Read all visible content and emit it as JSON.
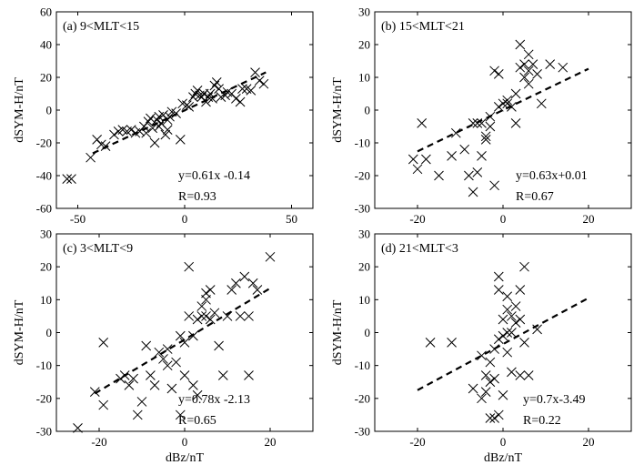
{
  "chart_data": [
    {
      "type": "scatter",
      "panel": "a",
      "title": "(a) 9<MLT<15",
      "ylabel": "dSYM-H/nT",
      "xlabel": "",
      "xlim": [
        -60,
        60
      ],
      "ylim": [
        -60,
        60
      ],
      "xticks": [
        -50,
        0,
        50
      ],
      "yticks": [
        -60,
        -40,
        -20,
        0,
        20,
        40,
        60
      ],
      "fit": {
        "slope": 0.61,
        "intercept": -0.14,
        "x_range": [
          -43,
          38
        ]
      },
      "annotation": {
        "eq": "y=0.61x -0.14",
        "r": "R=0.93"
      },
      "points": [
        [
          -55,
          -42
        ],
        [
          -53,
          -42
        ],
        [
          -44,
          -29
        ],
        [
          -41,
          -18
        ],
        [
          -39,
          -21
        ],
        [
          -37,
          -22
        ],
        [
          -33,
          -15
        ],
        [
          -31,
          -13
        ],
        [
          -29,
          -12
        ],
        [
          -27,
          -13
        ],
        [
          -25,
          -12
        ],
        [
          -23,
          -14
        ],
        [
          -21,
          -13
        ],
        [
          -19,
          -10
        ],
        [
          -18,
          -14
        ],
        [
          -17,
          -7
        ],
        [
          -16,
          -5
        ],
        [
          -15,
          -11
        ],
        [
          -14,
          -20
        ],
        [
          -13,
          -6
        ],
        [
          -12,
          -4
        ],
        [
          -12,
          -10
        ],
        [
          -11,
          -8
        ],
        [
          -10,
          -3
        ],
        [
          -9,
          -15
        ],
        [
          -8,
          -6
        ],
        [
          -8,
          -12
        ],
        [
          -7,
          -4
        ],
        [
          -6,
          -1
        ],
        [
          -4,
          -2
        ],
        [
          -2,
          -18
        ],
        [
          -1,
          4
        ],
        [
          1,
          3
        ],
        [
          2,
          2
        ],
        [
          4,
          8
        ],
        [
          5,
          10
        ],
        [
          6,
          12
        ],
        [
          7,
          9
        ],
        [
          8,
          8
        ],
        [
          9,
          10
        ],
        [
          10,
          5
        ],
        [
          11,
          8
        ],
        [
          12,
          10
        ],
        [
          13,
          7
        ],
        [
          14,
          15
        ],
        [
          15,
          17
        ],
        [
          16,
          13
        ],
        [
          17,
          8
        ],
        [
          19,
          9
        ],
        [
          20,
          11
        ],
        [
          22,
          10
        ],
        [
          24,
          7
        ],
        [
          26,
          5
        ],
        [
          27,
          13
        ],
        [
          29,
          13
        ],
        [
          31,
          12
        ],
        [
          33,
          23
        ],
        [
          35,
          18
        ],
        [
          37,
          16
        ]
      ]
    },
    {
      "type": "scatter",
      "panel": "b",
      "title": "(b) 15<MLT<21",
      "ylabel": "dSYM-H/nT",
      "xlabel": "",
      "xlim": [
        -30,
        30
      ],
      "ylim": [
        -30,
        30
      ],
      "xticks": [
        -20,
        0,
        20
      ],
      "yticks": [
        -30,
        -20,
        -10,
        0,
        10,
        20,
        30
      ],
      "fit": {
        "slope": 0.63,
        "intercept": 0.01,
        "x_range": [
          -20,
          20
        ]
      },
      "annotation": {
        "eq": "y=0.63x+0.01",
        "r": "R=0.67"
      },
      "points": [
        [
          -21,
          -15
        ],
        [
          -20,
          -18
        ],
        [
          -19,
          -4
        ],
        [
          -18,
          -15
        ],
        [
          -15,
          -20
        ],
        [
          -12,
          -14
        ],
        [
          -11,
          -7
        ],
        [
          -9,
          -12
        ],
        [
          -8,
          -20
        ],
        [
          -7,
          -25
        ],
        [
          -7,
          -4
        ],
        [
          -6,
          -19
        ],
        [
          -6,
          -4
        ],
        [
          -5,
          -4
        ],
        [
          -5,
          -14
        ],
        [
          -4,
          -8
        ],
        [
          -4,
          -9
        ],
        [
          -3,
          -5
        ],
        [
          -3,
          -2
        ],
        [
          -2,
          -23
        ],
        [
          -2,
          12
        ],
        [
          -1,
          11
        ],
        [
          -1,
          1
        ],
        [
          0,
          2
        ],
        [
          1,
          3
        ],
        [
          1,
          2
        ],
        [
          2,
          1
        ],
        [
          3,
          5
        ],
        [
          3,
          -4
        ],
        [
          4,
          13
        ],
        [
          4,
          20
        ],
        [
          5,
          14
        ],
        [
          5,
          10
        ],
        [
          6,
          8
        ],
        [
          6,
          17
        ],
        [
          6,
          12
        ],
        [
          7,
          14
        ],
        [
          8,
          11
        ],
        [
          9,
          2
        ],
        [
          11,
          14
        ],
        [
          14,
          13
        ]
      ]
    },
    {
      "type": "scatter",
      "panel": "c",
      "title": "(c) 3<MLT<9",
      "ylabel": "dSYM-H/nT",
      "xlabel": "dBz/nT",
      "xlim": [
        -30,
        30
      ],
      "ylim": [
        -30,
        30
      ],
      "xticks": [
        -20,
        0,
        20
      ],
      "yticks": [
        -30,
        -20,
        -10,
        0,
        10,
        20,
        30
      ],
      "fit": {
        "slope": 0.78,
        "intercept": -2.13,
        "x_range": [
          -21,
          20
        ]
      },
      "annotation": {
        "eq": "y=0.78x -2.13",
        "r": "R=0.65"
      },
      "points": [
        [
          -25,
          -29
        ],
        [
          -21,
          -18
        ],
        [
          -19,
          -22
        ],
        [
          -19,
          -3
        ],
        [
          -15,
          -14
        ],
        [
          -14,
          -13
        ],
        [
          -13,
          -16
        ],
        [
          -12,
          -14
        ],
        [
          -11,
          -25
        ],
        [
          -10,
          -21
        ],
        [
          -9,
          -4
        ],
        [
          -8,
          -13
        ],
        [
          -7,
          -16
        ],
        [
          -6,
          -6
        ],
        [
          -5,
          -8
        ],
        [
          -4,
          -10
        ],
        [
          -4,
          -5
        ],
        [
          -3,
          -17
        ],
        [
          -2,
          -9
        ],
        [
          -1,
          -25
        ],
        [
          -1,
          -1
        ],
        [
          0,
          -3
        ],
        [
          0,
          -13
        ],
        [
          1,
          5
        ],
        [
          1,
          20
        ],
        [
          2,
          -1
        ],
        [
          2,
          -16
        ],
        [
          3,
          -19
        ],
        [
          3,
          4
        ],
        [
          4,
          5
        ],
        [
          4,
          8
        ],
        [
          5,
          12
        ],
        [
          5,
          10
        ],
        [
          5,
          5
        ],
        [
          6,
          13
        ],
        [
          6,
          4
        ],
        [
          7,
          6
        ],
        [
          8,
          -4
        ],
        [
          9,
          -13
        ],
        [
          10,
          5
        ],
        [
          11,
          13
        ],
        [
          12,
          15
        ],
        [
          13,
          5
        ],
        [
          14,
          17
        ],
        [
          15,
          -13
        ],
        [
          15,
          5
        ],
        [
          16,
          15
        ],
        [
          17,
          13
        ],
        [
          20,
          23
        ]
      ]
    },
    {
      "type": "scatter",
      "panel": "d",
      "title": "(d) 21<MLT<3",
      "ylabel": "dSYM-H/nT",
      "xlabel": "dBz/nT",
      "xlim": [
        -30,
        30
      ],
      "ylim": [
        -30,
        30
      ],
      "xticks": [
        -20,
        0,
        20
      ],
      "yticks": [
        -30,
        -20,
        -10,
        0,
        10,
        20,
        30
      ],
      "fit": {
        "slope": 0.7,
        "intercept": -3.49,
        "x_range": [
          -20,
          20
        ]
      },
      "annotation": {
        "eq": "y=0.7x-3.49",
        "r": "R=0.22"
      },
      "points": [
        [
          -17,
          -3
        ],
        [
          -12,
          -3
        ],
        [
          -7,
          -17
        ],
        [
          -5,
          -7
        ],
        [
          -5,
          -20
        ],
        [
          -4,
          -13
        ],
        [
          -4,
          -18
        ],
        [
          -3,
          -26
        ],
        [
          -3,
          -15
        ],
        [
          -3,
          -9
        ],
        [
          -2,
          -26
        ],
        [
          -2,
          -5
        ],
        [
          -2,
          -14
        ],
        [
          -1,
          -2
        ],
        [
          -1,
          13
        ],
        [
          -1,
          17
        ],
        [
          -1,
          -25
        ],
        [
          0,
          -1
        ],
        [
          0,
          4
        ],
        [
          0,
          -19
        ],
        [
          1,
          7
        ],
        [
          1,
          11
        ],
        [
          1,
          -6
        ],
        [
          1,
          0
        ],
        [
          2,
          5
        ],
        [
          2,
          -12
        ],
        [
          2,
          0
        ],
        [
          3,
          3
        ],
        [
          3,
          8
        ],
        [
          4,
          4
        ],
        [
          4,
          13
        ],
        [
          4,
          -13
        ],
        [
          5,
          -3
        ],
        [
          5,
          20
        ],
        [
          6,
          -13
        ],
        [
          8,
          1
        ]
      ]
    }
  ],
  "colors": {
    "marker": "#000000",
    "fit": "#000000",
    "axis": "#000000"
  }
}
